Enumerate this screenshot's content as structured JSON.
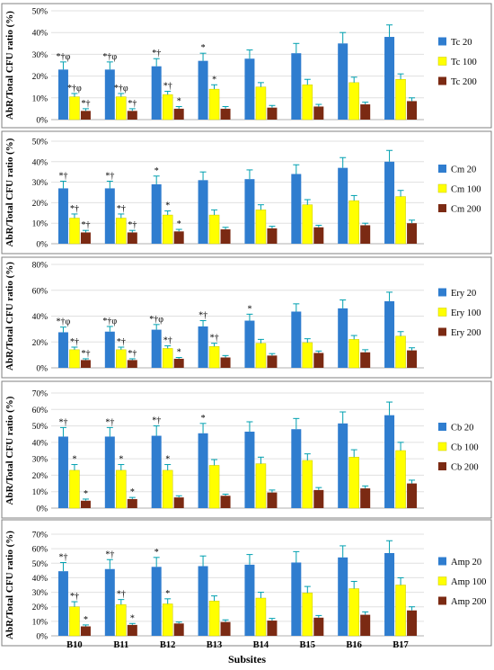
{
  "colors": {
    "s20": "#2f7dcf",
    "s100": "#ffff00",
    "s200": "#7b2a13",
    "err": "#00a0b0",
    "grid": "#e0e0e0",
    "frame": "#808080"
  },
  "xlabel": "Subsites",
  "chart_data": [
    {
      "type": "bar",
      "ylabel": "AbR/Total CFU ratio (%)",
      "ylim": [
        0,
        50
      ],
      "yticks": [
        "0%",
        "10%",
        "20%",
        "30%",
        "40%",
        "50%"
      ],
      "categories": [
        "B10",
        "B11",
        "B12",
        "B13",
        "B14",
        "B15",
        "B16",
        "B17"
      ],
      "legend_position": "right",
      "series": [
        {
          "name": "Tc 20",
          "values": [
            23,
            23,
            24.5,
            27,
            28,
            30.5,
            35,
            38
          ],
          "errors": [
            3.5,
            3.5,
            3.5,
            3.5,
            4,
            4.5,
            5,
            5.5
          ],
          "annotations": [
            "*†φ",
            "*†φ",
            "*†",
            "*",
            "",
            "",
            "",
            ""
          ]
        },
        {
          "name": "Tc 100",
          "values": [
            10.5,
            10.5,
            11.5,
            14,
            15,
            16,
            17,
            18.5
          ],
          "errors": [
            1.5,
            1.5,
            1.5,
            2,
            2,
            2.5,
            2.5,
            2.5
          ],
          "annotations": [
            "*†φ",
            "*†φ",
            "*†",
            "*",
            "",
            "",
            "",
            ""
          ]
        },
        {
          "name": "Tc 200",
          "values": [
            4,
            4,
            5,
            5,
            5.5,
            6,
            7,
            8.5
          ],
          "errors": [
            1,
            1,
            1,
            1,
            1,
            1,
            1,
            1.5
          ],
          "annotations": [
            "*†",
            "*†",
            "*",
            "",
            "",
            "",
            "",
            ""
          ]
        }
      ]
    },
    {
      "type": "bar",
      "ylabel": "AbR/Total CFU ratio (%)",
      "ylim": [
        0,
        50
      ],
      "yticks": [
        "0%",
        "10%",
        "20%",
        "30%",
        "40%",
        "50%"
      ],
      "categories": [
        "B10",
        "B11",
        "B12",
        "B13",
        "B14",
        "B15",
        "B16",
        "B17"
      ],
      "legend_position": "right",
      "series": [
        {
          "name": "Cm 20",
          "values": [
            27,
            27,
            29,
            31,
            31.5,
            34,
            37,
            40
          ],
          "errors": [
            3.5,
            3.5,
            4,
            4,
            4.5,
            4.5,
            5,
            5.5
          ],
          "annotations": [
            "*†",
            "*†",
            "*",
            "",
            "",
            "",
            "",
            ""
          ]
        },
        {
          "name": "Cm 100",
          "values": [
            12.5,
            12.5,
            14,
            14,
            16.5,
            19,
            21,
            23
          ],
          "errors": [
            2,
            2,
            2,
            2.5,
            2.5,
            2.5,
            2.5,
            3
          ],
          "annotations": [
            "*†",
            "*†",
            "*",
            "",
            "",
            "",
            "",
            ""
          ]
        },
        {
          "name": "Cm 200",
          "values": [
            5.5,
            5.5,
            6,
            7,
            7.5,
            8,
            9,
            10
          ],
          "errors": [
            1,
            1,
            1,
            1,
            1,
            1,
            1,
            1.5
          ],
          "annotations": [
            "*†",
            "*†",
            "*",
            "",
            "",
            "",
            "",
            ""
          ]
        }
      ]
    },
    {
      "type": "bar",
      "ylabel": "AbR/Total CFU ratio (%)",
      "ylim": [
        0,
        80
      ],
      "yticks": [
        "0%",
        "20%",
        "40%",
        "60%",
        "80%"
      ],
      "categories": [
        "B10",
        "B11",
        "B12",
        "B13",
        "B14",
        "B15",
        "B16",
        "B17"
      ],
      "legend_position": "right",
      "series": [
        {
          "name": "Ery 20",
          "values": [
            27.5,
            28,
            29.5,
            32,
            36.5,
            43.5,
            46,
            51.5
          ],
          "errors": [
            4,
            4,
            4,
            4.5,
            5,
            6,
            6.5,
            7
          ],
          "annotations": [
            "*†φ",
            "*†φ",
            "*†φ",
            "*†",
            "*",
            "",
            "",
            ""
          ]
        },
        {
          "name": "Ery 100",
          "values": [
            14,
            14,
            15,
            16.5,
            19,
            19.5,
            22,
            24.5
          ],
          "errors": [
            2,
            2,
            2,
            2.5,
            3,
            3,
            3,
            3.5
          ],
          "annotations": [
            "*†",
            "*†",
            "*†",
            "*†",
            "",
            "",
            "",
            ""
          ]
        },
        {
          "name": "Ery 200",
          "values": [
            6,
            6,
            7,
            8,
            9.5,
            11.5,
            12,
            13.5
          ],
          "errors": [
            1,
            1,
            1,
            1.5,
            1.5,
            1.5,
            2,
            2
          ],
          "annotations": [
            "*†",
            "*†",
            "*",
            "",
            "",
            "",
            "",
            ""
          ]
        }
      ]
    },
    {
      "type": "bar",
      "ylabel": "AbR/Total CFU ratio (%)",
      "ylim": [
        0,
        70
      ],
      "yticks": [
        "0%",
        "10%",
        "20%",
        "30%",
        "40%",
        "50%",
        "60%",
        "70%"
      ],
      "categories": [
        "B10",
        "B11",
        "B12",
        "B13",
        "B14",
        "B15",
        "B16",
        "B17"
      ],
      "legend_position": "right",
      "series": [
        {
          "name": "Cb 20",
          "values": [
            43.5,
            43.5,
            44,
            45.5,
            46.5,
            48,
            51.5,
            56.5
          ],
          "errors": [
            5.5,
            5.5,
            6,
            6,
            6,
            6.5,
            7,
            8
          ],
          "annotations": [
            "*†",
            "*†",
            "*†",
            "*",
            "",
            "",
            "",
            ""
          ]
        },
        {
          "name": "Cb 100",
          "values": [
            23,
            23,
            23,
            26,
            27,
            29,
            31,
            35
          ],
          "errors": [
            3.5,
            3.5,
            3.5,
            3.5,
            4,
            4,
            4.5,
            5
          ],
          "annotations": [
            "*",
            "*",
            "*",
            "",
            "",
            "",
            "",
            ""
          ]
        },
        {
          "name": "Cb 200",
          "values": [
            4.5,
            5.5,
            6.5,
            7.5,
            9.5,
            11,
            12,
            15
          ],
          "errors": [
            1,
            1,
            1,
            1,
            1.5,
            1.5,
            1.5,
            2
          ],
          "annotations": [
            "*",
            "*",
            "",
            "",
            "",
            "",
            "",
            ""
          ]
        }
      ]
    },
    {
      "type": "bar",
      "ylabel": "AbR/Total CFU ratio (%)",
      "ylim": [
        0,
        70
      ],
      "yticks": [
        "0%",
        "10%",
        "20%",
        "30%",
        "40%",
        "50%",
        "60%",
        "70%"
      ],
      "categories": [
        "B10",
        "B11",
        "B12",
        "B13",
        "B14",
        "B15",
        "B16",
        "B17"
      ],
      "legend_position": "right",
      "series": [
        {
          "name": "Amp 20",
          "values": [
            44.5,
            46,
            47.5,
            48,
            49,
            50.5,
            54,
            57
          ],
          "errors": [
            6,
            6.5,
            6.5,
            7,
            7,
            7.5,
            8,
            8.5
          ],
          "annotations": [
            "*†",
            "*†",
            "*",
            "",
            "",
            "",
            "",
            ""
          ]
        },
        {
          "name": "Amp 100",
          "values": [
            20,
            21.5,
            22,
            24,
            26,
            29.5,
            32.5,
            35
          ],
          "errors": [
            3.5,
            3.5,
            3.5,
            3.5,
            4,
            4.5,
            5,
            5
          ],
          "annotations": [
            "*†",
            "*†",
            "*",
            "",
            "",
            "",
            "",
            ""
          ]
        },
        {
          "name": "Amp 200",
          "values": [
            6.5,
            7.5,
            8.5,
            9.5,
            10.5,
            12.5,
            14.5,
            17.5
          ],
          "errors": [
            1,
            1,
            1,
            1.5,
            1.5,
            1.5,
            2,
            2.5
          ],
          "annotations": [
            "*",
            "*",
            "",
            "",
            "",
            "",
            "",
            ""
          ]
        }
      ]
    }
  ]
}
